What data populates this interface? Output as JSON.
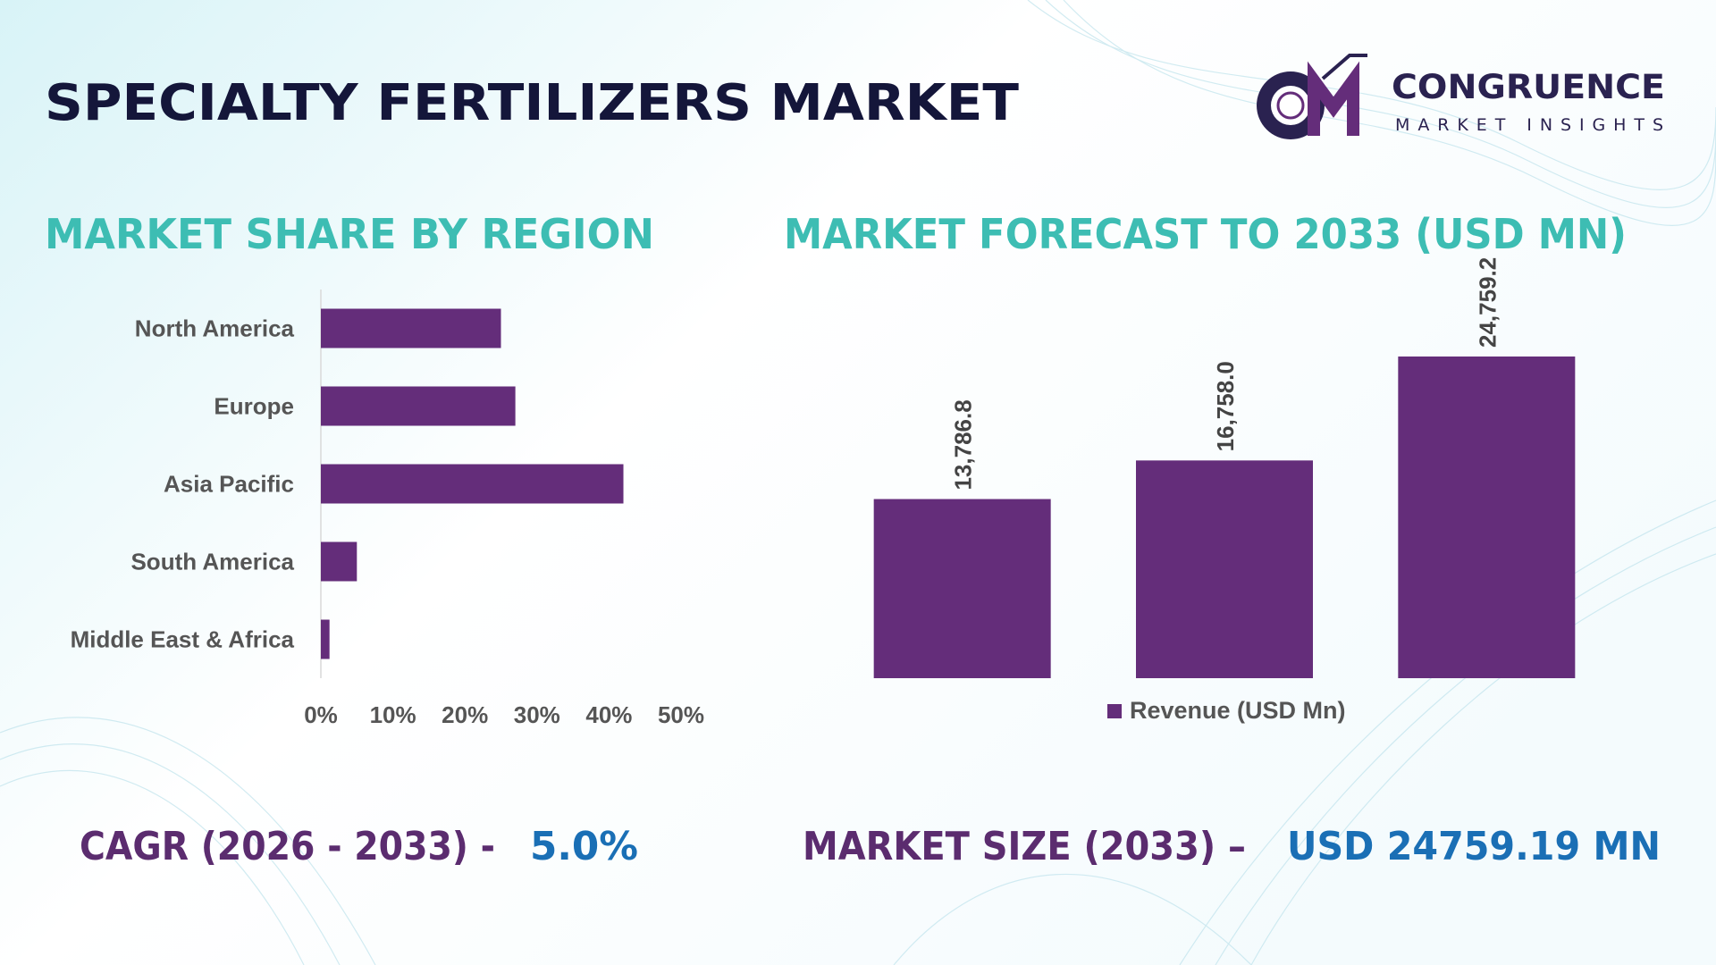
{
  "title": "SPECIALTY FERTILIZERS MARKET",
  "logo": {
    "name": "CONGRUENCE",
    "tagline": "MARKET INSIGHTS"
  },
  "chart_data": [
    {
      "type": "bar",
      "orientation": "horizontal",
      "title": "MARKET SHARE BY REGION",
      "categories": [
        "North America",
        "Europe",
        "Asia Pacific",
        "South America",
        "Middle East & Africa"
      ],
      "values": [
        25,
        27,
        42,
        5,
        1.2
      ],
      "color": "#642d7a",
      "xlim": [
        0,
        50
      ],
      "xticks": [
        {
          "value": 0,
          "label": "0%"
        },
        {
          "value": 10,
          "label": "10%"
        },
        {
          "value": 20,
          "label": "20%"
        },
        {
          "value": 30,
          "label": "30%"
        },
        {
          "value": 40,
          "label": "40%"
        },
        {
          "value": 50,
          "label": "50%"
        }
      ]
    },
    {
      "type": "bar",
      "title": "MARKET FORECAST TO 2033 (USD MN)",
      "categories": [
        null,
        null,
        null
      ],
      "series": [
        {
          "name": "Revenue (USD Mn)",
          "color": "#642d7a",
          "values": [
            13786.8,
            16758.0,
            24759.2
          ],
          "value_labels": [
            "13,786.8",
            "16,758.0",
            "24,759.2"
          ]
        }
      ],
      "legend": "bottom"
    }
  ],
  "footer": {
    "cagr": {
      "label": "CAGR (2026 - 2033) -",
      "value": "5.0%"
    },
    "market_size": {
      "label": "MARKET SIZE (2033) –",
      "value": "USD 24759.19 MN"
    }
  }
}
